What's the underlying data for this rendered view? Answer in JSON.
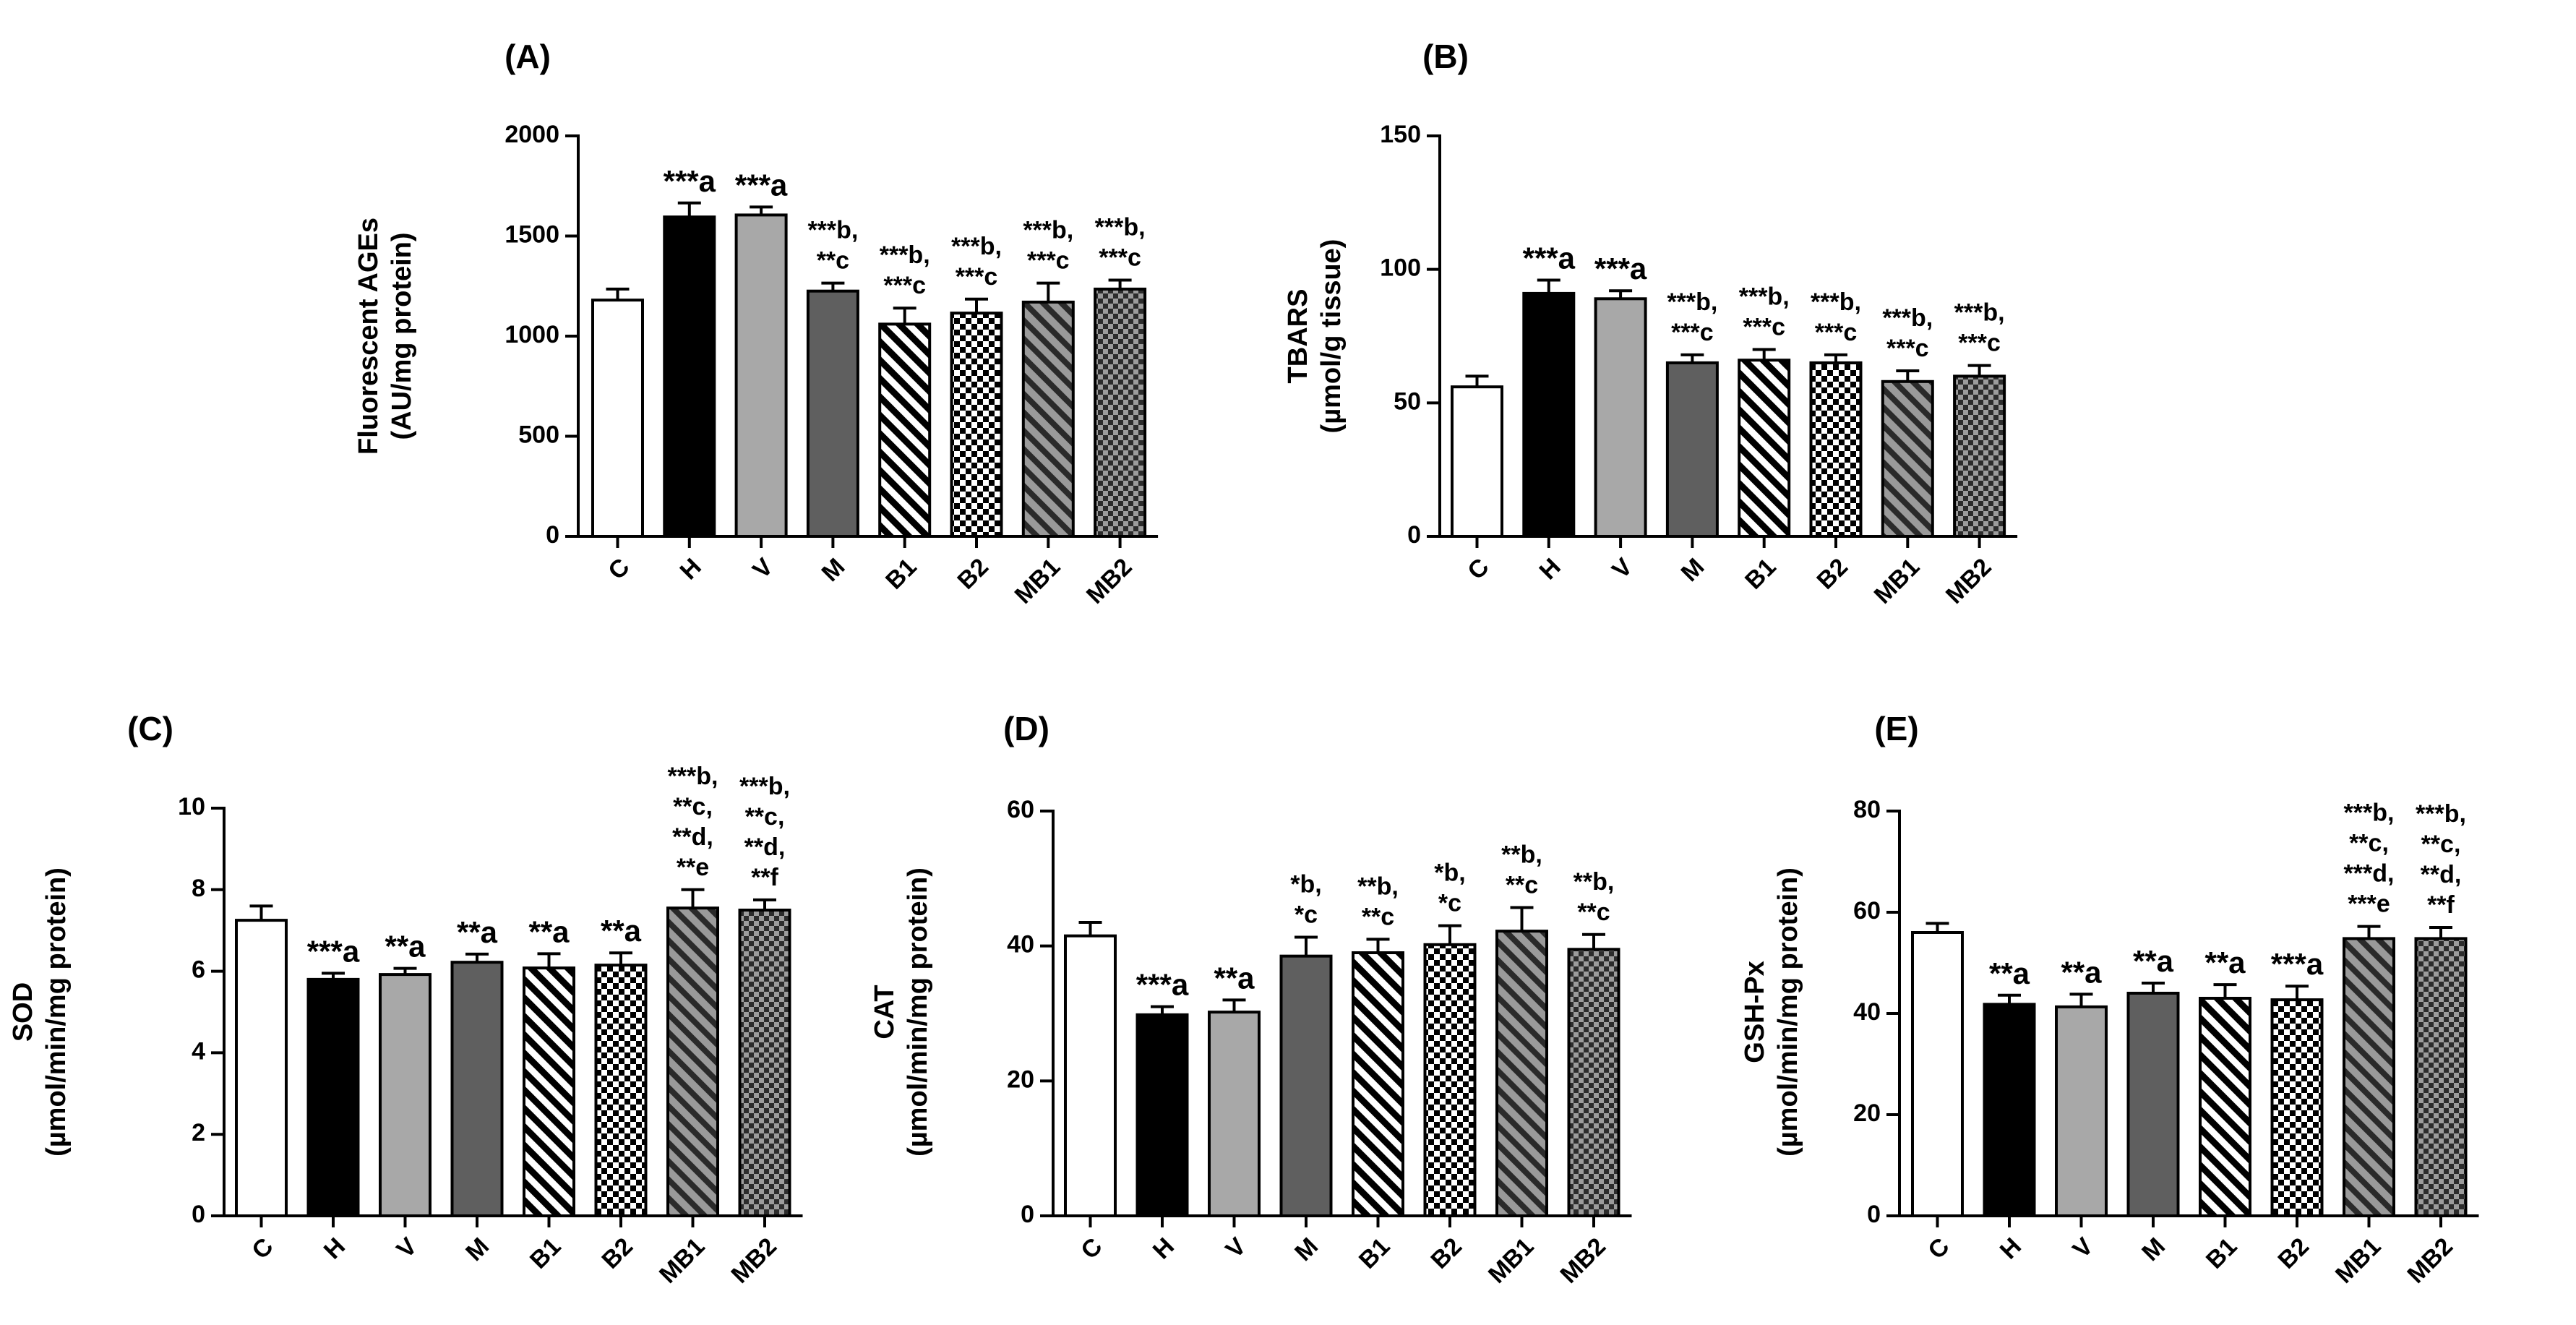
{
  "chart_data": [
    {
      "type": "bar",
      "panel_label": "(A)",
      "ylabel_lines": [
        "Fluorescent AGEs",
        "(AU/mg protein)"
      ],
      "categories": [
        "C",
        "H",
        "V",
        "M",
        "B1",
        "B2",
        "MB1",
        "MB2"
      ],
      "values": [
        1180,
        1595,
        1605,
        1225,
        1060,
        1115,
        1170,
        1235
      ],
      "errors": [
        55,
        70,
        40,
        40,
        80,
        70,
        95,
        45
      ],
      "ylim": [
        0,
        2000
      ],
      "yticks": [
        0,
        500,
        1000,
        1500,
        2000
      ],
      "annotations": [
        [],
        [
          "***a"
        ],
        [
          "***a"
        ],
        [
          "***b,",
          "**c"
        ],
        [
          "***b,",
          "***c"
        ],
        [
          "***b,",
          "***c"
        ],
        [
          "***b,",
          "***c"
        ],
        [
          "***b,",
          "***c"
        ]
      ],
      "grid": false,
      "legend": "none"
    },
    {
      "type": "bar",
      "panel_label": "(B)",
      "ylabel_lines": [
        "TBARS",
        "(µmol/g tissue)"
      ],
      "categories": [
        "C",
        "H",
        "V",
        "M",
        "B1",
        "B2",
        "MB1",
        "MB2"
      ],
      "values": [
        56,
        91,
        89,
        65,
        66,
        65,
        58,
        60
      ],
      "errors": [
        4,
        5,
        3,
        3,
        4,
        3,
        4,
        4
      ],
      "ylim": [
        0,
        150
      ],
      "yticks": [
        0,
        50,
        100,
        150
      ],
      "annotations": [
        [],
        [
          "***a"
        ],
        [
          "***a"
        ],
        [
          "***b,",
          "***c"
        ],
        [
          "***b,",
          "***c"
        ],
        [
          "***b,",
          "***c"
        ],
        [
          "***b,",
          "***c"
        ],
        [
          "***b,",
          "***c"
        ]
      ],
      "grid": false,
      "legend": "none"
    },
    {
      "type": "bar",
      "panel_label": "(C)",
      "ylabel_lines": [
        "SOD",
        "(µmol/min/mg protein)"
      ],
      "categories": [
        "C",
        "H",
        "V",
        "M",
        "B1",
        "B2",
        "MB1",
        "MB2"
      ],
      "values": [
        7.25,
        5.8,
        5.92,
        6.22,
        6.08,
        6.15,
        7.55,
        7.5
      ],
      "errors": [
        0.35,
        0.15,
        0.15,
        0.2,
        0.35,
        0.3,
        0.45,
        0.25
      ],
      "ylim": [
        0,
        10
      ],
      "yticks": [
        0,
        2,
        4,
        6,
        8,
        10
      ],
      "annotations": [
        [],
        [
          "***a"
        ],
        [
          "**a"
        ],
        [
          "**a"
        ],
        [
          "**a"
        ],
        [
          "**a"
        ],
        [
          "***b,",
          "**c,",
          "**d,",
          "**e"
        ],
        [
          "***b,",
          "**c,",
          "**d,",
          "**f"
        ]
      ],
      "grid": false,
      "legend": "none"
    },
    {
      "type": "bar",
      "panel_label": "(D)",
      "ylabel_lines": [
        "CAT",
        "(µmol/min/mg protein)"
      ],
      "categories": [
        "C",
        "H",
        "V",
        "M",
        "B1",
        "B2",
        "MB1",
        "MB2"
      ],
      "values": [
        41.5,
        29.8,
        30.2,
        38.5,
        39.0,
        40.2,
        42.2,
        39.5
      ],
      "errors": [
        2.0,
        1.2,
        1.8,
        2.8,
        2.0,
        2.8,
        3.5,
        2.2
      ],
      "ylim": [
        0,
        60
      ],
      "yticks": [
        0,
        20,
        40,
        60
      ],
      "annotations": [
        [],
        [
          "***a"
        ],
        [
          "**a"
        ],
        [
          "*b,",
          "*c"
        ],
        [
          "**b,",
          "**c"
        ],
        [
          "*b,",
          "*c"
        ],
        [
          "**b,",
          "**c"
        ],
        [
          "**b,",
          "**c"
        ]
      ],
      "grid": false,
      "legend": "none"
    },
    {
      "type": "bar",
      "panel_label": "(E)",
      "ylabel_lines": [
        "GSH-Px",
        "(µmol/min/mg protein)"
      ],
      "categories": [
        "C",
        "H",
        "V",
        "M",
        "B1",
        "B2",
        "MB1",
        "MB2"
      ],
      "values": [
        56.0,
        41.8,
        41.3,
        44.0,
        43.0,
        42.7,
        54.8,
        54.8
      ],
      "errors": [
        1.8,
        1.8,
        2.5,
        2.0,
        2.7,
        2.7,
        2.4,
        2.2
      ],
      "ylim": [
        0,
        80
      ],
      "yticks": [
        0,
        20,
        40,
        60,
        80
      ],
      "annotations": [
        [],
        [
          "**a"
        ],
        [
          "**a"
        ],
        [
          "**a"
        ],
        [
          "**a"
        ],
        [
          "***a"
        ],
        [
          "***b,",
          "**c,",
          "***d,",
          "***e"
        ],
        [
          "***b,",
          "**c,",
          "**d,",
          "**f"
        ]
      ],
      "grid": false,
      "legend": "none"
    }
  ],
  "bar_styles": [
    {
      "name": "C",
      "fill": "#ffffff",
      "pattern": "none"
    },
    {
      "name": "H",
      "fill": "#000000",
      "pattern": "none"
    },
    {
      "name": "V",
      "fill": "#a8a8a8",
      "pattern": "none"
    },
    {
      "name": "M",
      "fill": "#5f5f5f",
      "pattern": "none"
    },
    {
      "name": "B1",
      "fill": "#ffffff",
      "pattern": "diagonal-stripes"
    },
    {
      "name": "B2",
      "fill": "#ffffff",
      "pattern": "checkerboard"
    },
    {
      "name": "MB1",
      "fill": "#888888",
      "pattern": "dark-diagonal-stripes"
    },
    {
      "name": "MB2",
      "fill": "#888888",
      "pattern": "dark-checkerboard"
    }
  ]
}
